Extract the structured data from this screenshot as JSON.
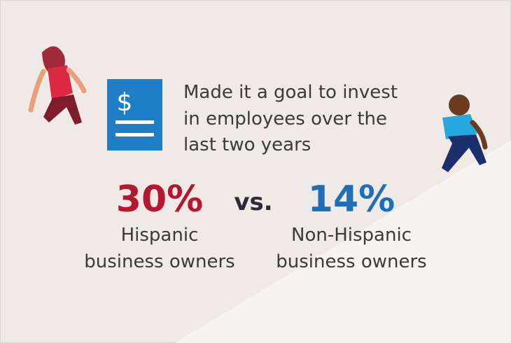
{
  "icon_symbol": "$",
  "headline": {
    "lines": [
      "Made it a goal to invest",
      "in employees over the",
      "last two years"
    ]
  },
  "comparison": {
    "left": {
      "value": "30%",
      "label_lines": [
        "Hispanic",
        "business owners"
      ]
    },
    "separator": "vs.",
    "right": {
      "value": "14%",
      "label_lines": [
        "Non-Hispanic",
        "business owners"
      ]
    }
  }
}
